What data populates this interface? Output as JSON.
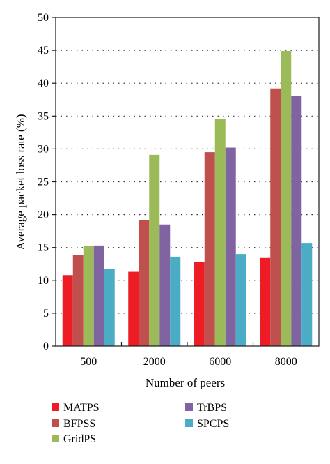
{
  "chart_data": {
    "type": "bar",
    "title": "",
    "xlabel": "Number of peers",
    "ylabel": "Average packet loss rate (%)",
    "categories": [
      "500",
      "2000",
      "6000",
      "8000"
    ],
    "ylim": [
      0,
      50
    ],
    "yticks": [
      0,
      5,
      10,
      15,
      20,
      25,
      30,
      35,
      40,
      45,
      50
    ],
    "grid": "horizontal-dotted",
    "legend_position": "bottom",
    "series": [
      {
        "name": "MATPS",
        "color": "#ee1c25",
        "values": [
          10.8,
          11.3,
          12.8,
          13.4
        ]
      },
      {
        "name": "BFPSS",
        "color": "#c0504d",
        "values": [
          13.9,
          19.2,
          29.5,
          39.2
        ]
      },
      {
        "name": "GridPS",
        "color": "#9bbb59",
        "values": [
          15.2,
          29.1,
          34.6,
          44.9
        ]
      },
      {
        "name": "TrBPS",
        "color": "#8064a2",
        "values": [
          15.3,
          18.5,
          30.2,
          38.1
        ]
      },
      {
        "name": "SPCPS",
        "color": "#4bacc6",
        "values": [
          11.7,
          13.6,
          14.0,
          15.7
        ]
      }
    ]
  }
}
